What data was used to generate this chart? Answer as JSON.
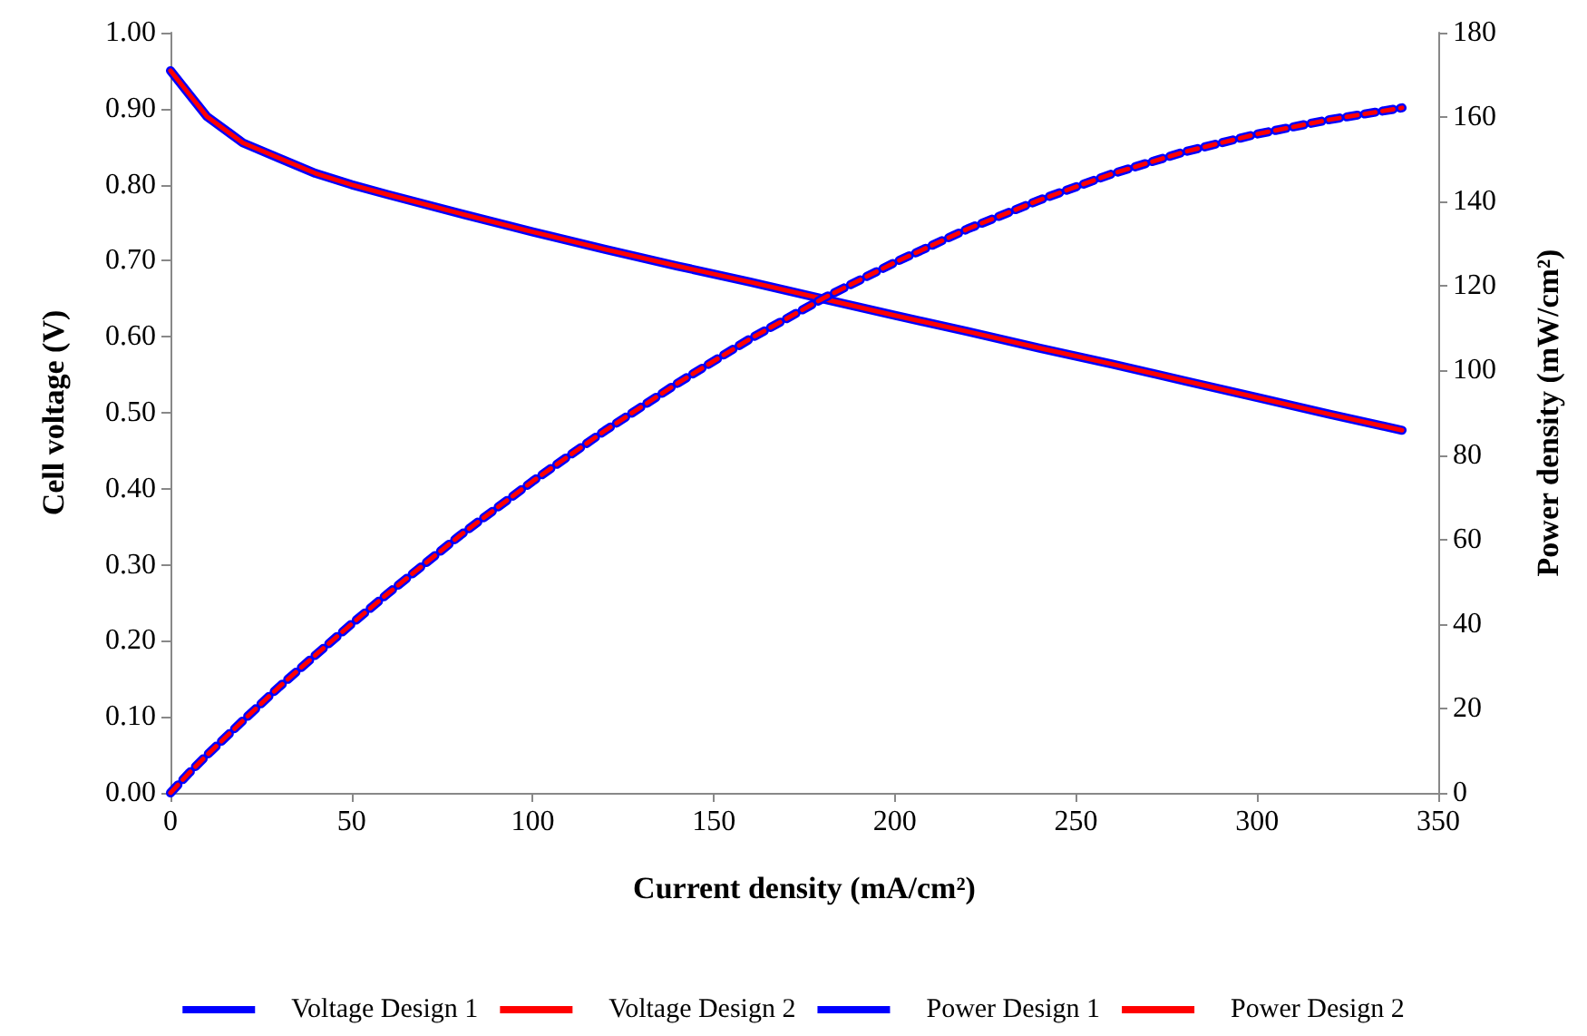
{
  "chart_data": {
    "type": "line",
    "xlabel": "Current density (mA/cm²)",
    "ylabel": "Cell voltage (V)",
    "y2label": "Power density (mW/cm²)",
    "x": [
      0,
      5,
      10,
      20,
      30,
      40,
      50,
      60,
      80,
      100,
      120,
      140,
      160,
      180,
      200,
      220,
      240,
      260,
      280,
      300,
      320,
      340
    ],
    "series": [
      {
        "name": "Voltage Design 1",
        "color": "#0000ff",
        "line_style": "solid",
        "values": [
          0.95,
          0.92,
          0.89,
          0.855,
          0.835,
          0.815,
          0.8,
          0.787,
          0.762,
          0.738,
          0.715,
          0.693,
          0.672,
          0.65,
          0.628,
          0.607,
          0.585,
          0.564,
          0.542,
          0.52,
          0.498,
          0.477
        ]
      },
      {
        "name": "Voltage Design 2",
        "color": "#ff0000",
        "line_style": "solid",
        "values": [
          0.95,
          0.92,
          0.89,
          0.855,
          0.835,
          0.815,
          0.8,
          0.787,
          0.762,
          0.738,
          0.715,
          0.693,
          0.672,
          0.65,
          0.628,
          0.607,
          0.585,
          0.564,
          0.542,
          0.52,
          0.498,
          0.477
        ]
      },
      {
        "name": "Power Design 1",
        "color": "#0000ff",
        "line_style": "dashed",
        "axis": "y2",
        "values": [
          0,
          4.6,
          8.9,
          17.1,
          25.1,
          32.6,
          40,
          47.2,
          61,
          73.8,
          85.8,
          97,
          107.5,
          117,
          125.6,
          133.5,
          140.4,
          146.6,
          151.8,
          156,
          159.4,
          162.2
        ]
      },
      {
        "name": "Power Design 2",
        "color": "#ff0000",
        "line_style": "dashed",
        "axis": "y2",
        "values": [
          0,
          4.6,
          8.9,
          17.1,
          25.1,
          32.6,
          40,
          47.2,
          61,
          73.8,
          85.8,
          97,
          107.5,
          117,
          125.6,
          133.5,
          140.4,
          146.6,
          151.8,
          156,
          159.4,
          162.2
        ]
      }
    ],
    "xlim": [
      0,
      350
    ],
    "xticks": [
      0,
      50,
      100,
      150,
      200,
      250,
      300,
      350
    ],
    "ylim": [
      0,
      1
    ],
    "yticks": [
      {
        "value": 0,
        "label": "0.00"
      },
      {
        "value": 0.1,
        "label": "0.10"
      },
      {
        "value": 0.2,
        "label": "0.20"
      },
      {
        "value": 0.3,
        "label": "0.30"
      },
      {
        "value": 0.4,
        "label": "0.40"
      },
      {
        "value": 0.5,
        "label": "0.50"
      },
      {
        "value": 0.6,
        "label": "0.60"
      },
      {
        "value": 0.7,
        "label": "0.70"
      },
      {
        "value": 0.8,
        "label": "0.80"
      },
      {
        "value": 0.9,
        "label": "0.90"
      },
      {
        "value": 1,
        "label": "1.00"
      }
    ],
    "y2lim": [
      0,
      180
    ],
    "y2ticks": [
      0,
      20,
      40,
      60,
      80,
      100,
      120,
      140,
      160,
      180
    ],
    "grid": false,
    "legend": "bottom",
    "marker": "none"
  }
}
